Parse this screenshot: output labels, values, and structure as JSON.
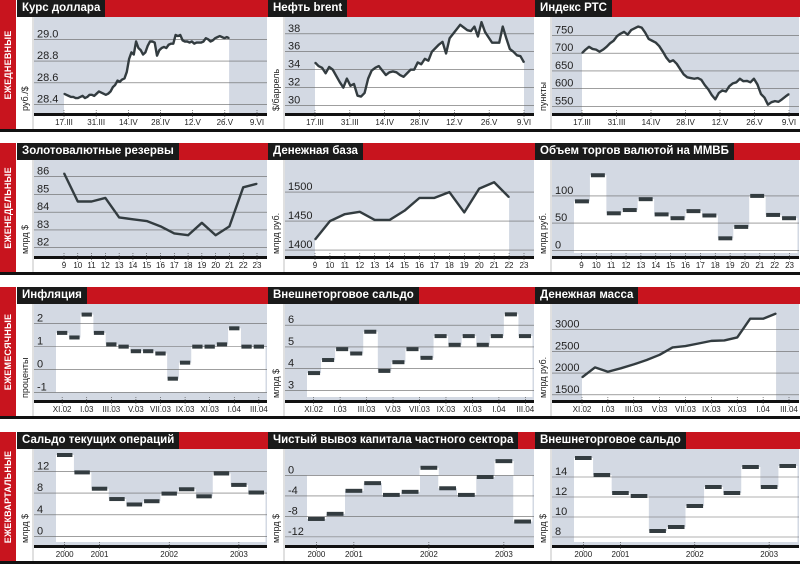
{
  "rows": [
    {
      "label": "ЕЖЕДНЕВНЫЕ"
    },
    {
      "label": "ЕЖЕНЕДЕЛЬНЫЕ"
    },
    {
      "label": "ЕЖЕМЕСЯЧНЫЕ"
    },
    {
      "label": "ЕЖЕКВАРТАЛЬНЫЕ"
    }
  ],
  "colors": {
    "red": "#c8141e",
    "title_bg": "#1a1a1a",
    "plot_bg": "#d3d9e3",
    "line": "#333c40"
  },
  "chart_data": [
    {
      "id": "usd",
      "type": "line",
      "title": "Курс доллара",
      "ylabel": "руб./$",
      "ylim": [
        28.35,
        29.15
      ],
      "yticks": [
        "28.4",
        "28.6",
        "28.8",
        "29.0"
      ],
      "ytick_values": [
        28.4,
        28.6,
        28.8,
        29.0
      ],
      "xticks": [
        "17.III",
        "31.III",
        "14.IV",
        "28.IV",
        "12.V",
        "26.V",
        "9.VI"
      ],
      "n": 84,
      "fill_end": 0.96,
      "values": [
        28.5,
        28.49,
        28.48,
        28.47,
        28.47,
        28.46,
        28.46,
        28.47,
        28.48,
        28.46,
        28.47,
        28.49,
        28.49,
        28.48,
        28.5,
        28.52,
        28.51,
        28.5,
        28.49,
        28.5,
        28.52,
        28.56,
        28.58,
        28.62,
        28.61,
        28.63,
        28.64,
        28.7,
        28.82,
        28.88,
        28.86,
        28.98,
        28.92,
        28.9,
        28.86,
        28.88,
        28.94,
        28.98,
        28.98,
        28.97,
        28.85,
        28.9,
        28.92,
        28.93,
        28.92,
        28.95,
        28.96,
        28.96,
        29.04,
        29.03,
        29.04,
        28.99,
        28.98,
        28.98,
        28.97,
        28.98,
        28.96,
        28.97,
        28.97,
        28.97,
        28.98,
        29.01,
        29.0,
        28.98,
        28.99,
        29.01,
        29.02,
        29.03,
        29.02,
        29.01,
        29.02,
        29.01
      ]
    },
    {
      "id": "brent",
      "type": "line",
      "title": "Нефть brent",
      "ylabel": "$/баррель",
      "ylim": [
        29.5,
        39.2
      ],
      "yticks": [
        "30",
        "32",
        "34",
        "36",
        "38"
      ],
      "ytick_values": [
        30,
        32,
        34,
        36,
        38
      ],
      "xticks": [
        "17.III",
        "31.III",
        "14.IV",
        "28.IV",
        "12.V",
        "26.V",
        "9.VI"
      ],
      "n": 60,
      "fill_end": 0.96,
      "values": [
        34.8,
        34.4,
        34.2,
        33.6,
        34.3,
        34.0,
        33.3,
        32.6,
        32.0,
        33.0,
        32.2,
        32.4,
        31.1,
        31.0,
        31.4,
        33.0,
        33.9,
        34.2,
        34.4,
        33.9,
        33.4,
        33.7,
        33.8,
        33.7,
        33.4,
        33.2,
        33.6,
        34.0,
        34.0,
        34.8,
        34.6,
        35.2,
        35.0,
        36.0,
        36.4,
        36.8,
        37.1,
        35.8,
        37.5,
        38.0,
        38.5,
        39.0,
        38.7,
        38.4,
        38.3,
        38.8,
        37.7,
        39.3,
        38.2,
        37.6,
        37.0,
        37.0,
        37.0,
        38.8,
        37.5,
        36.3,
        36.0,
        35.6,
        35.5,
        34.8
      ]
    },
    {
      "id": "rts",
      "type": "line",
      "title": "Индекс РТС",
      "ylabel": "пункты",
      "ylim": [
        540,
        785
      ],
      "yticks": [
        "550",
        "600",
        "650",
        "700",
        "750"
      ],
      "ytick_values": [
        550,
        600,
        650,
        700,
        750
      ],
      "xticks": [
        "17.III",
        "31.III",
        "14.IV",
        "28.IV",
        "12.V",
        "26.V",
        "9.VI"
      ],
      "n": 60,
      "fill_end": 0.96,
      "values": [
        700,
        710,
        718,
        712,
        710,
        704,
        710,
        718,
        728,
        735,
        748,
        755,
        760,
        752,
        765,
        770,
        775,
        772,
        758,
        740,
        735,
        730,
        720,
        705,
        688,
        676,
        680,
        670,
        655,
        640,
        632,
        630,
        628,
        630,
        625,
        610,
        598,
        582,
        570,
        588,
        595,
        592,
        607,
        615,
        618,
        628,
        621,
        622,
        618,
        628,
        612,
        585,
        575,
        555,
        562,
        565,
        563,
        570,
        578,
        585
      ]
    },
    {
      "id": "reserves",
      "type": "line",
      "title": "Золотовалютные резервы",
      "ylabel": "млрд $",
      "ylim": [
        81.7,
        86.6
      ],
      "yticks": [
        "82",
        "83",
        "84",
        "85",
        "86"
      ],
      "ytick_values": [
        82,
        83,
        84,
        85,
        86
      ],
      "xticks": [
        "9",
        "10",
        "11",
        "12",
        "13",
        "14",
        "15",
        "16",
        "17",
        "18",
        "19",
        "20",
        "21",
        "22",
        "23"
      ],
      "n": 15,
      "fill_end": 1.02,
      "no_fill": true,
      "values": [
        86.2,
        84.6,
        84.6,
        84.8,
        83.7,
        83.6,
        83.5,
        83.2,
        82.8,
        82.7,
        83.4,
        82.7,
        83.2,
        85.4,
        85.6
      ]
    },
    {
      "id": "monetary_base",
      "type": "line",
      "title": "Денежная база",
      "ylabel": "млрд руб.",
      "ylim": [
        1395,
        1545
      ],
      "yticks": [
        "1400",
        "1450",
        "1500"
      ],
      "ytick_values": [
        1400,
        1450,
        1500
      ],
      "xticks": [
        "9",
        "10",
        "11",
        "12",
        "13",
        "14",
        "15",
        "16",
        "17",
        "18",
        "19",
        "20",
        "21",
        "22",
        "23"
      ],
      "n": 15,
      "fill_end": 0.93,
      "values": [
        1418,
        1450,
        1462,
        1466,
        1452,
        1452,
        1468,
        1490,
        1490,
        1500,
        1465,
        1506,
        1517,
        1491
      ]
    },
    {
      "id": "micex",
      "type": "step",
      "title": "Объем торгов валютой на ММВБ",
      "ylabel": "млрд руб.",
      "ylim": [
        -5,
        155
      ],
      "yticks": [
        "0",
        "50",
        "100"
      ],
      "ytick_values": [
        0,
        50,
        100
      ],
      "xticks": [
        "9",
        "10",
        "11",
        "12",
        "13",
        "14",
        "15",
        "16",
        "17",
        "18",
        "19",
        "20",
        "21",
        "22",
        "23"
      ],
      "n": 15,
      "values": [
        90,
        138,
        68,
        74,
        94,
        66,
        59,
        72,
        64,
        22,
        43,
        100,
        65,
        59
      ]
    },
    {
      "id": "inflation",
      "type": "step",
      "title": "Инфляция",
      "ylabel": "проценты",
      "ylim": [
        -1.2,
        2.6
      ],
      "yticks": [
        "-1",
        "0",
        "1",
        "2"
      ],
      "ytick_values": [
        -1,
        0,
        1,
        2
      ],
      "xticks": [
        "XI.02",
        "I.03",
        "III.03",
        "V.03",
        "VII.03",
        "IX.03",
        "XI.03",
        "I.04",
        "III.04"
      ],
      "n": 17,
      "baseline": -1.0,
      "values": [
        1.6,
        1.4,
        2.4,
        1.6,
        1.1,
        1.0,
        0.8,
        0.8,
        0.7,
        -0.4,
        0.3,
        1.0,
        1.0,
        1.1,
        1.8,
        1.0,
        1.0
      ]
    },
    {
      "id": "trade_balance_m",
      "type": "step",
      "title": "Внешнеторговое сальдо",
      "ylabel": "млрд $",
      "ylim": [
        2.7,
        6.7
      ],
      "yticks": [
        "3",
        "4",
        "5",
        "6"
      ],
      "ytick_values": [
        3,
        4,
        5,
        6
      ],
      "xticks": [
        "XI.02",
        "I.03",
        "III.03",
        "V.03",
        "VII.03",
        "IX.03",
        "XI.03",
        "I.04",
        "III.04"
      ],
      "n": 17,
      "baseline": 2.7,
      "values": [
        3.8,
        4.4,
        4.9,
        4.7,
        5.7,
        3.9,
        4.3,
        4.9,
        4.5,
        5.5,
        5.1,
        5.5,
        5.1,
        5.5,
        6.5,
        5.5
      ]
    },
    {
      "id": "money_supply",
      "type": "line",
      "title": "Денежная масса",
      "ylabel": "млрд руб.",
      "ylim": [
        1450,
        3450
      ],
      "yticks": [
        "1500",
        "2000",
        "2500",
        "3000"
      ],
      "ytick_values": [
        1500,
        2000,
        2500,
        3000
      ],
      "xticks": [
        "XI.02",
        "I.03",
        "III.03",
        "V.03",
        "VII.03",
        "IX.03",
        "XI.03",
        "I.04",
        "III.04"
      ],
      "n": 17,
      "fill_end": 0.91,
      "values": [
        1900,
        2130,
        2030,
        2110,
        2200,
        2300,
        2420,
        2590,
        2620,
        2680,
        2740,
        2750,
        2820,
        3250,
        3250,
        3370
      ]
    },
    {
      "id": "current_account",
      "type": "step",
      "title": "Сальдо текущих операций",
      "ylabel": "млрд $",
      "ylim": [
        -1,
        15
      ],
      "yticks": [
        "0",
        "4",
        "8",
        "12"
      ],
      "ytick_values": [
        0,
        4,
        8,
        12
      ],
      "xticks": [
        "2000",
        "2001",
        "2002",
        "2003"
      ],
      "xtick_pos": [
        0.5,
        2.5,
        6.5,
        10.5
      ],
      "n": 12,
      "baseline": -1,
      "values": [
        15.0,
        11.8,
        8.8,
        6.9,
        5.9,
        6.5,
        7.9,
        8.7,
        7.4,
        11.6,
        9.5,
        8.1
      ]
    },
    {
      "id": "capital_outflow",
      "type": "step",
      "title": "Чистый вывоз капитала частного сектора",
      "ylabel": "млрд $",
      "ylim": [
        -13,
        4
      ],
      "yticks": [
        "-12",
        "-8",
        "-4",
        "0"
      ],
      "ytick_values": [
        -12,
        -8,
        -4,
        0
      ],
      "xticks": [
        "2000",
        "2001",
        "2002",
        "2003"
      ],
      "xtick_pos": [
        0.5,
        2.5,
        6.5,
        10.5
      ],
      "n": 12,
      "baseline": 0,
      "values": [
        -8.5,
        -7.5,
        -3.0,
        -1.5,
        -3.8,
        -3.2,
        1.5,
        -2.5,
        -3.8,
        -0.3,
        2.8,
        -9.0
      ]
    },
    {
      "id": "trade_balance_q",
      "type": "step",
      "title": "Внешнеторговое сальдо",
      "ylabel": "млрд $",
      "ylim": [
        7.5,
        16.2
      ],
      "yticks": [
        "8",
        "10",
        "12",
        "14"
      ],
      "ytick_values": [
        8,
        10,
        12,
        14
      ],
      "xticks": [
        "2000",
        "2001",
        "2002",
        "2003"
      ],
      "xtick_pos": [
        0.5,
        2.5,
        6.5,
        10.5
      ],
      "n": 12,
      "baseline": 7.5,
      "values": [
        15.9,
        14.2,
        12.4,
        12.1,
        8.6,
        9.0,
        11.1,
        13.0,
        12.4,
        15.0,
        13.0,
        15.1
      ]
    }
  ]
}
